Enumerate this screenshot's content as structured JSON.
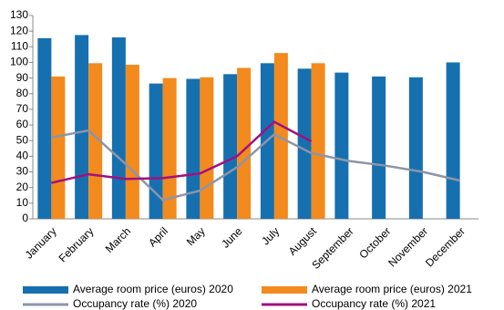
{
  "chart_data": {
    "type": "bar",
    "categories": [
      "January",
      "February",
      "March",
      "April",
      "May",
      "June",
      "July",
      "August",
      "September",
      "October",
      "November",
      "December"
    ],
    "series": [
      {
        "name": "Average room price (euros) 2020",
        "type": "bar",
        "color": "#1670b0",
        "values": [
          115.5,
          117.5,
          116,
          86.5,
          89.5,
          92.5,
          99.5,
          96,
          93.5,
          91,
          90.5,
          100
        ]
      },
      {
        "name": "Average room price (euros) 2021",
        "type": "bar",
        "color": "#f28a1e",
        "values": [
          91,
          99.5,
          98.5,
          90,
          90.5,
          96.5,
          106,
          99.5,
          null,
          null,
          null,
          null
        ]
      },
      {
        "name": "Occupancy rate (%) 2020",
        "type": "line",
        "color": "#8c95a8",
        "values": [
          52,
          56.5,
          35,
          12,
          18,
          33,
          54,
          42,
          37,
          34,
          30,
          24.5
        ]
      },
      {
        "name": "Occupancy rate (%) 2021",
        "type": "line",
        "color": "#a0117f",
        "values": [
          23,
          28.5,
          25.5,
          26,
          29,
          40,
          62,
          49.5,
          null,
          null,
          null,
          null
        ]
      }
    ],
    "ylim": [
      0,
      130
    ],
    "yticks": [
      0,
      10,
      20,
      30,
      40,
      50,
      60,
      70,
      80,
      90,
      100,
      110,
      120,
      130
    ],
    "grid": false,
    "legend": "bottom"
  }
}
